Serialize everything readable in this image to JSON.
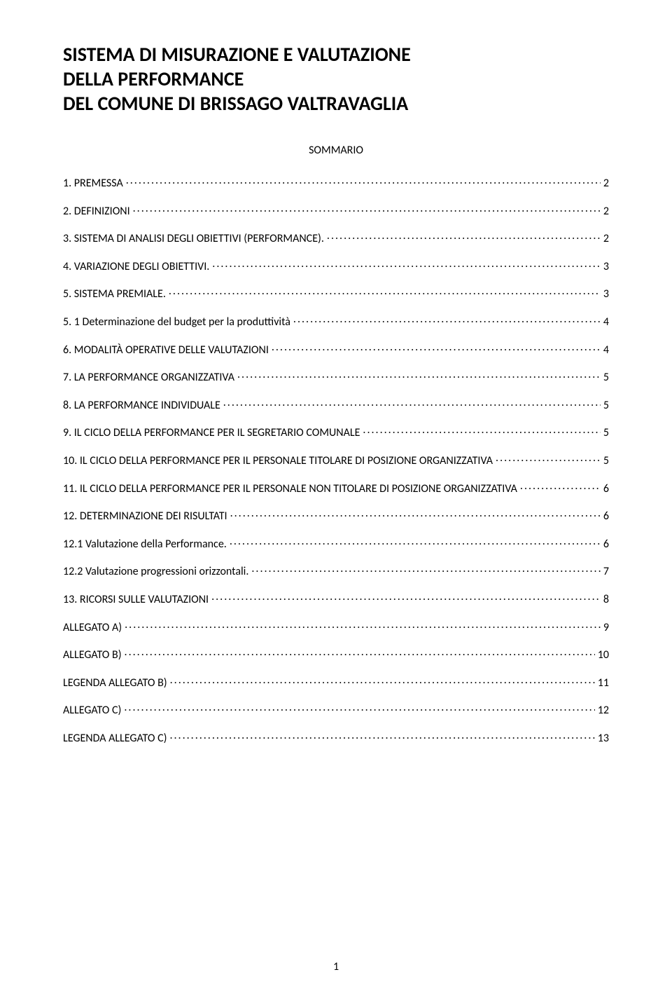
{
  "title": {
    "line1": "SISTEMA DI MISURAZIONE E VALUTAZIONE",
    "line2": "DELLA PERFORMANCE",
    "line3": "DEL COMUNE DI BRISSAGO VALTRAVAGLIA"
  },
  "sommario_label": "SOMMARIO",
  "toc": [
    {
      "label": "1. PREMESSA",
      "page": "2"
    },
    {
      "label": "2. DEFINIZIONI",
      "page": "2"
    },
    {
      "label": "3. SISTEMA DI ANALISI DEGLI OBIETTIVI (PERFORMANCE).",
      "page": "2"
    },
    {
      "label": "4. VARIAZIONE DEGLI OBIETTIVI.",
      "page": "3"
    },
    {
      "label": "5. SISTEMA PREMIALE.",
      "page": "3"
    },
    {
      "label": "5. 1 Determinazione del budget per la produttività",
      "page": "4"
    },
    {
      "label": "6. MODALITÀ OPERATIVE DELLE VALUTAZIONI",
      "page": "4"
    },
    {
      "label": "7. LA PERFORMANCE ORGANIZZATIVA",
      "page": "5"
    },
    {
      "label": "8. LA PERFORMANCE INDIVIDUALE",
      "page": "5"
    },
    {
      "label": "9. IL CICLO DELLA PERFORMANCE PER IL SEGRETARIO COMUNALE",
      "page": "5"
    },
    {
      "label": "10. IL CICLO DELLA PERFORMANCE PER IL PERSONALE TITOLARE DI POSIZIONE ORGANIZZATIVA",
      "page": "5"
    },
    {
      "label": "11. IL CICLO DELLA PERFORMANCE PER IL PERSONALE NON TITOLARE DI POSIZIONE ORGANIZZATIVA",
      "page": "6"
    },
    {
      "label": "12. DETERMINAZIONE DEI RISULTATI",
      "page": "6"
    },
    {
      "label": "12.1 Valutazione della Performance.",
      "page": "6"
    },
    {
      "label": "12.2 Valutazione progressioni orizzontali.",
      "page": "7"
    },
    {
      "label": "13. RICORSI SULLE VALUTAZIONI",
      "page": "8"
    },
    {
      "label": "ALLEGATO A)",
      "page": "9"
    },
    {
      "label": "ALLEGATO B)",
      "page": "10"
    },
    {
      "label": "LEGENDA ALLEGATO B)",
      "page": "11"
    },
    {
      "label": "ALLEGATO C)",
      "page": "12"
    },
    {
      "label": "LEGENDA ALLEGATO C)",
      "page": "13"
    }
  ],
  "page_number": "1",
  "style": {
    "font_family": "Calibri",
    "title_fontsize_pt": 21,
    "body_fontsize_pt": 12,
    "text_color": "#000000",
    "background_color": "#ffffff"
  }
}
